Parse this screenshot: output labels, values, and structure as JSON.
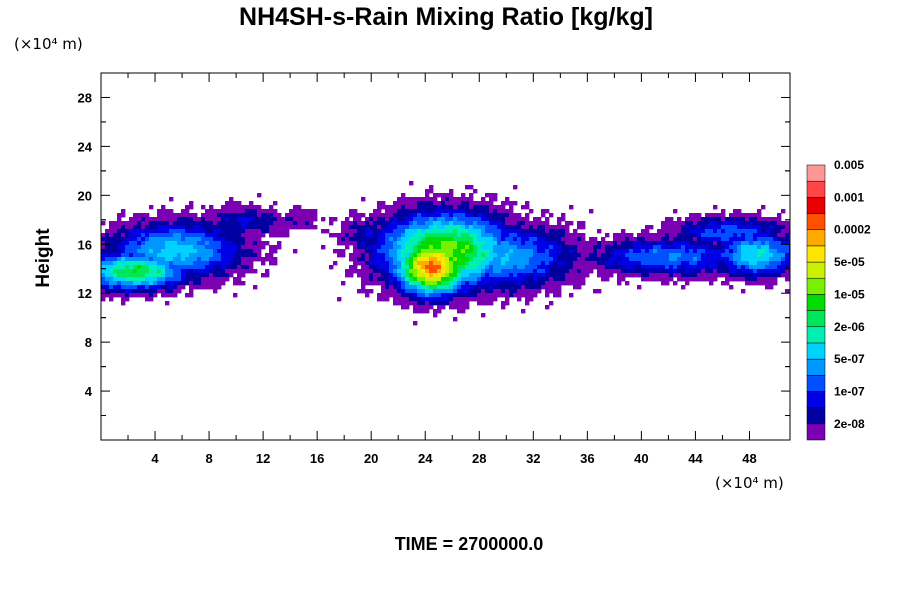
{
  "chart_data": {
    "type": "heatmap",
    "title": "NH4SH-s-Rain Mixing Ratio [kg/kg]",
    "ylabel": "Height",
    "xlabel": "",
    "x_unit": "(×10⁴ m)",
    "y_unit": "(×10⁴ m)",
    "xlim": [
      0,
      51
    ],
    "ylim": [
      0,
      30
    ],
    "xticks": [
      4,
      8,
      12,
      16,
      20,
      24,
      28,
      32,
      36,
      40,
      44,
      48
    ],
    "yticks": [
      4,
      8,
      12,
      16,
      20,
      24,
      28
    ],
    "colorbar": {
      "colors": [
        "#7b00b4",
        "#0000a0",
        "#0000e6",
        "#0050ff",
        "#0096ff",
        "#00d2ff",
        "#00f0b4",
        "#00e65a",
        "#00dc00",
        "#78f000",
        "#c8f000",
        "#ffe600",
        "#ffaa00",
        "#ff5000",
        "#e60000",
        "#ff4646",
        "#ff9696"
      ],
      "labels": [
        "2e-08",
        "1e-07",
        "5e-07",
        "2e-06",
        "1e-05",
        "5e-05",
        "0.0002",
        "0.001",
        "0.005"
      ]
    },
    "regions": [
      {
        "x": [
          0,
          10
        ],
        "y": [
          12.5,
          18.5
        ],
        "peak_level": 8,
        "description": "left band"
      },
      {
        "x": [
          8,
          15
        ],
        "y": [
          15.5,
          19.5
        ],
        "peak_level": 2,
        "description": "left upper sparse"
      },
      {
        "x": [
          17,
          36
        ],
        "y": [
          11.5,
          19
        ],
        "peak_level": 14,
        "description": "central core"
      },
      {
        "x": [
          34,
          51
        ],
        "y": [
          13,
          18.8
        ],
        "peak_level": 7,
        "description": "right band"
      }
    ]
  },
  "footer": {
    "time_label": "TIME = 2700000.0"
  }
}
